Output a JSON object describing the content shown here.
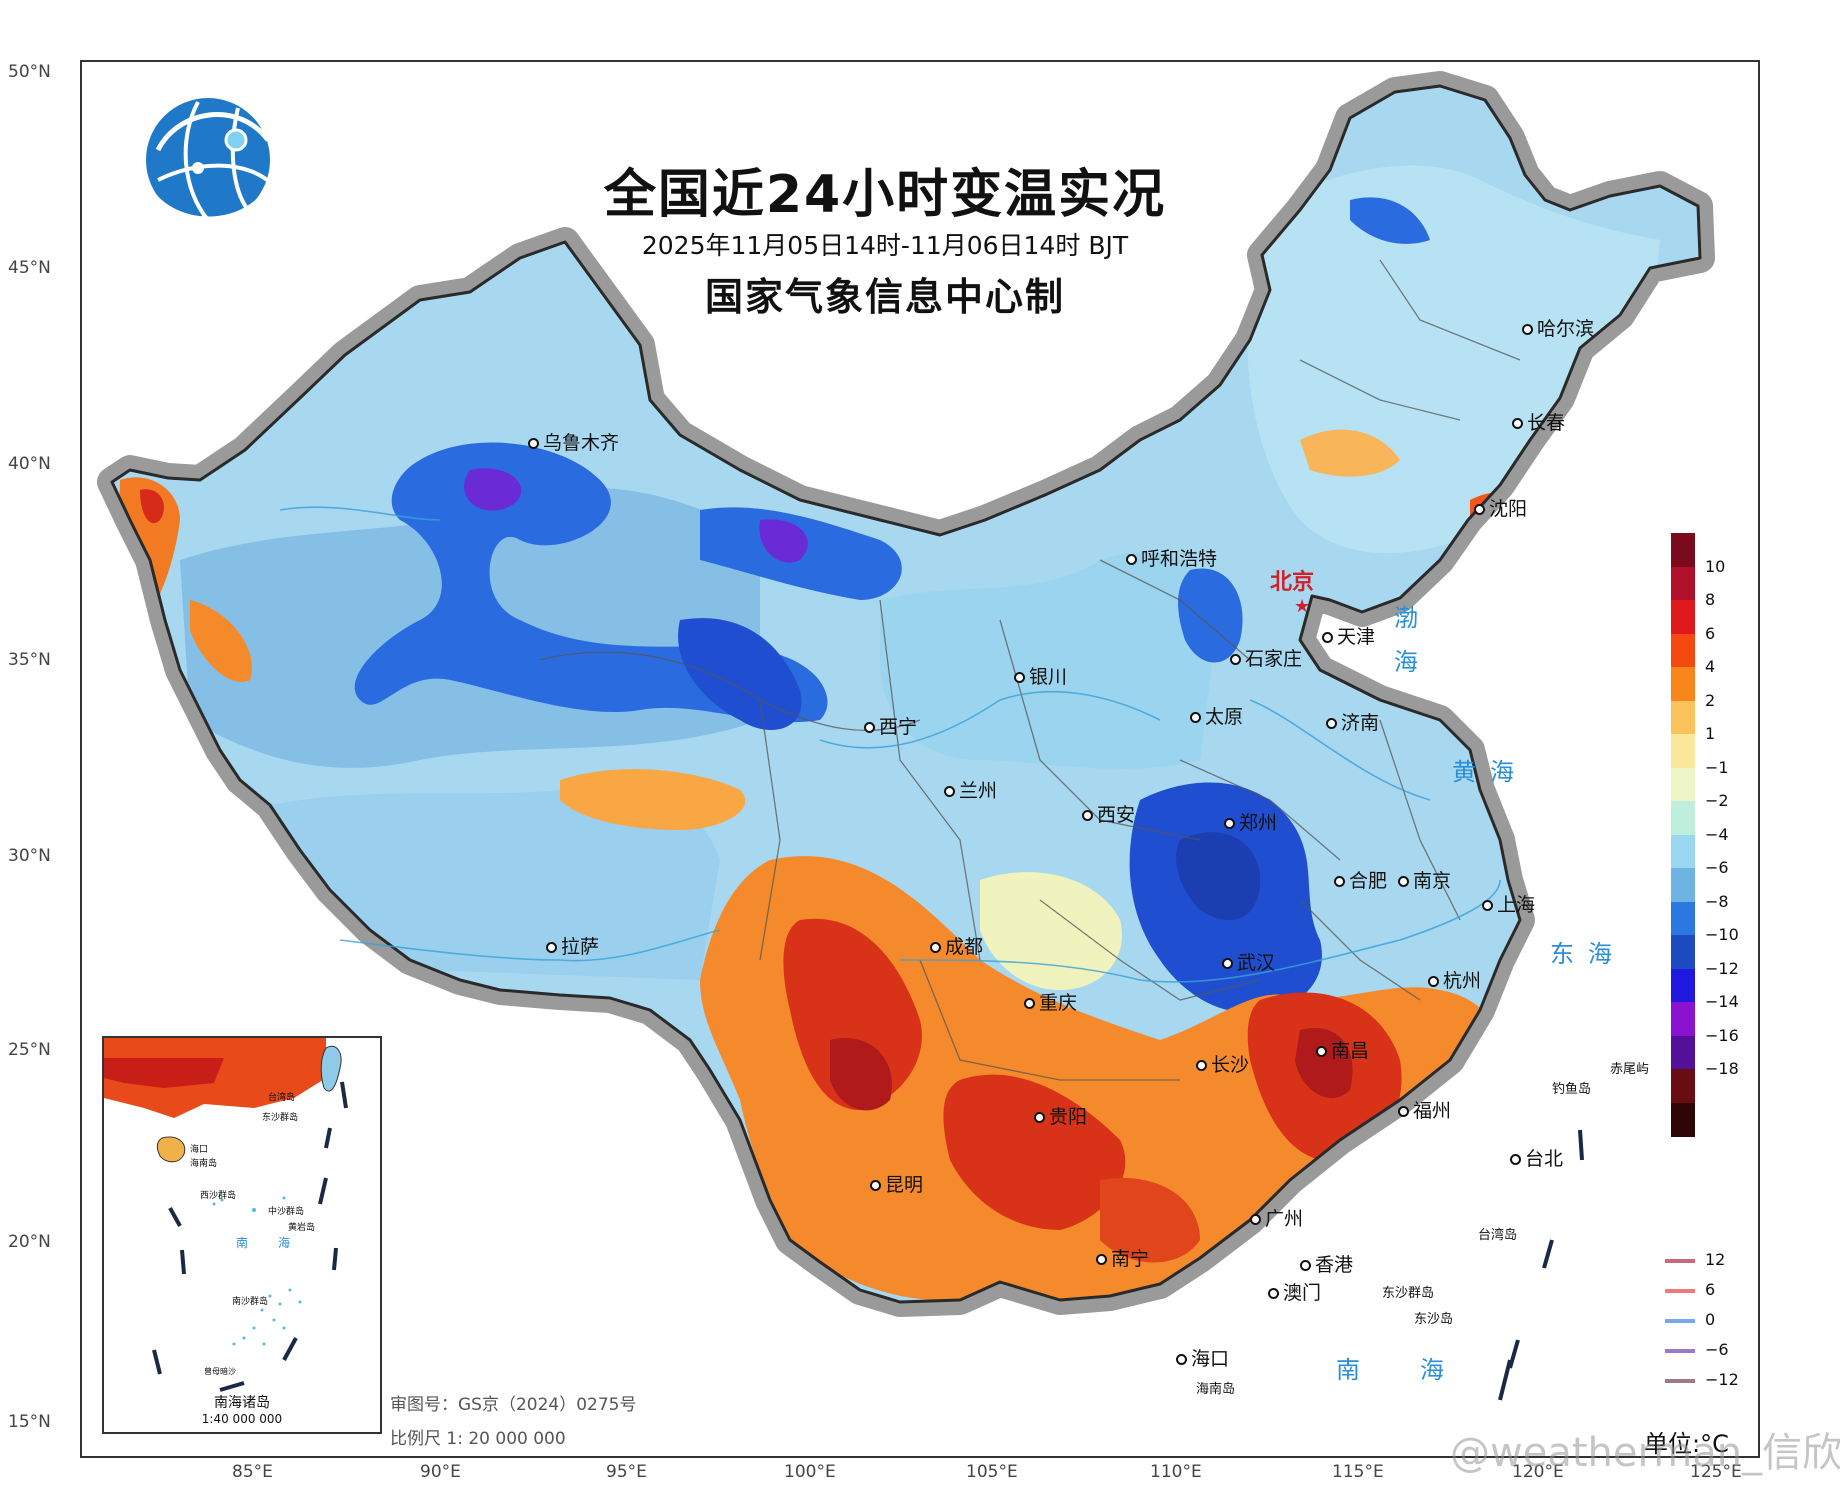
{
  "title": "全国近24小时变温实况",
  "subtitle": "2025年11月05日14时-11月06日14时 BJT",
  "producer": "国家气象信息中心制",
  "latitude_labels": [
    "50°N",
    "45°N",
    "40°N",
    "35°N",
    "30°N",
    "25°N",
    "20°N",
    "15°N"
  ],
  "longitude_labels": [
    "85°E",
    "90°E",
    "95°E",
    "100°E",
    "105°E",
    "110°E",
    "115°E",
    "120°E",
    "125°E"
  ],
  "capital": "北京",
  "cities": [
    "乌鲁木齐",
    "哈尔滨",
    "长春",
    "沈阳",
    "呼和浩特",
    "天津",
    "石家庄",
    "银川",
    "太原",
    "济南",
    "西宁",
    "兰州",
    "西安",
    "郑州",
    "合肥",
    "南京",
    "上海",
    "拉萨",
    "成都",
    "重庆",
    "武汉",
    "杭州",
    "长沙",
    "南昌",
    "贵阳",
    "福州",
    "昆明",
    "台北",
    "广州",
    "南宁",
    "香港",
    "澳门",
    "海口"
  ],
  "seas": {
    "bohai": "渤海",
    "yellow_sea": "黄海",
    "east_sea": "东海",
    "south_sea": "南海"
  },
  "islands": [
    "赤尾屿",
    "钓鱼岛",
    "台湾岛",
    "东沙群岛",
    "东沙岛",
    "海南岛"
  ],
  "legend": {
    "ticks": [
      "10",
      "8",
      "6",
      "4",
      "2",
      "1",
      "−1",
      "−2",
      "−4",
      "−6",
      "−8",
      "−10",
      "−12",
      "−14",
      "−16",
      "−18"
    ],
    "colors": [
      "#7a0a1e",
      "#b0102a",
      "#e0191c",
      "#f44a12",
      "#f8861c",
      "#fbc25c",
      "#fbe89a",
      "#eef6c8",
      "#bfeedd",
      "#9ad6f0",
      "#6fb3e2",
      "#2a78e0",
      "#1e4bc2",
      "#1f19e0",
      "#8a12d0",
      "#55109a",
      "#6a0d12",
      "#2e0606"
    ]
  },
  "isolines": {
    "labels": [
      "12",
      "6",
      "0",
      "−6",
      "−12"
    ],
    "colors": [
      "#c86a78",
      "#f07878",
      "#78a8f0",
      "#a078c8",
      "#a07a82"
    ]
  },
  "unit": "单位:°C",
  "review_number": "审图号：GS京（2024）0275号",
  "scale_text": "比例尺  1: 20 000 000",
  "inset": {
    "title": "南海诸岛",
    "scale": "1:40 000 000",
    "labels": [
      "台湾岛",
      "东沙群岛",
      "海口",
      "海南岛",
      "西沙群岛",
      "中沙群岛",
      "黄岩岛",
      "南",
      "海",
      "南沙群岛",
      "曾母暗沙"
    ]
  },
  "watermark": "@weatherman_信欣"
}
